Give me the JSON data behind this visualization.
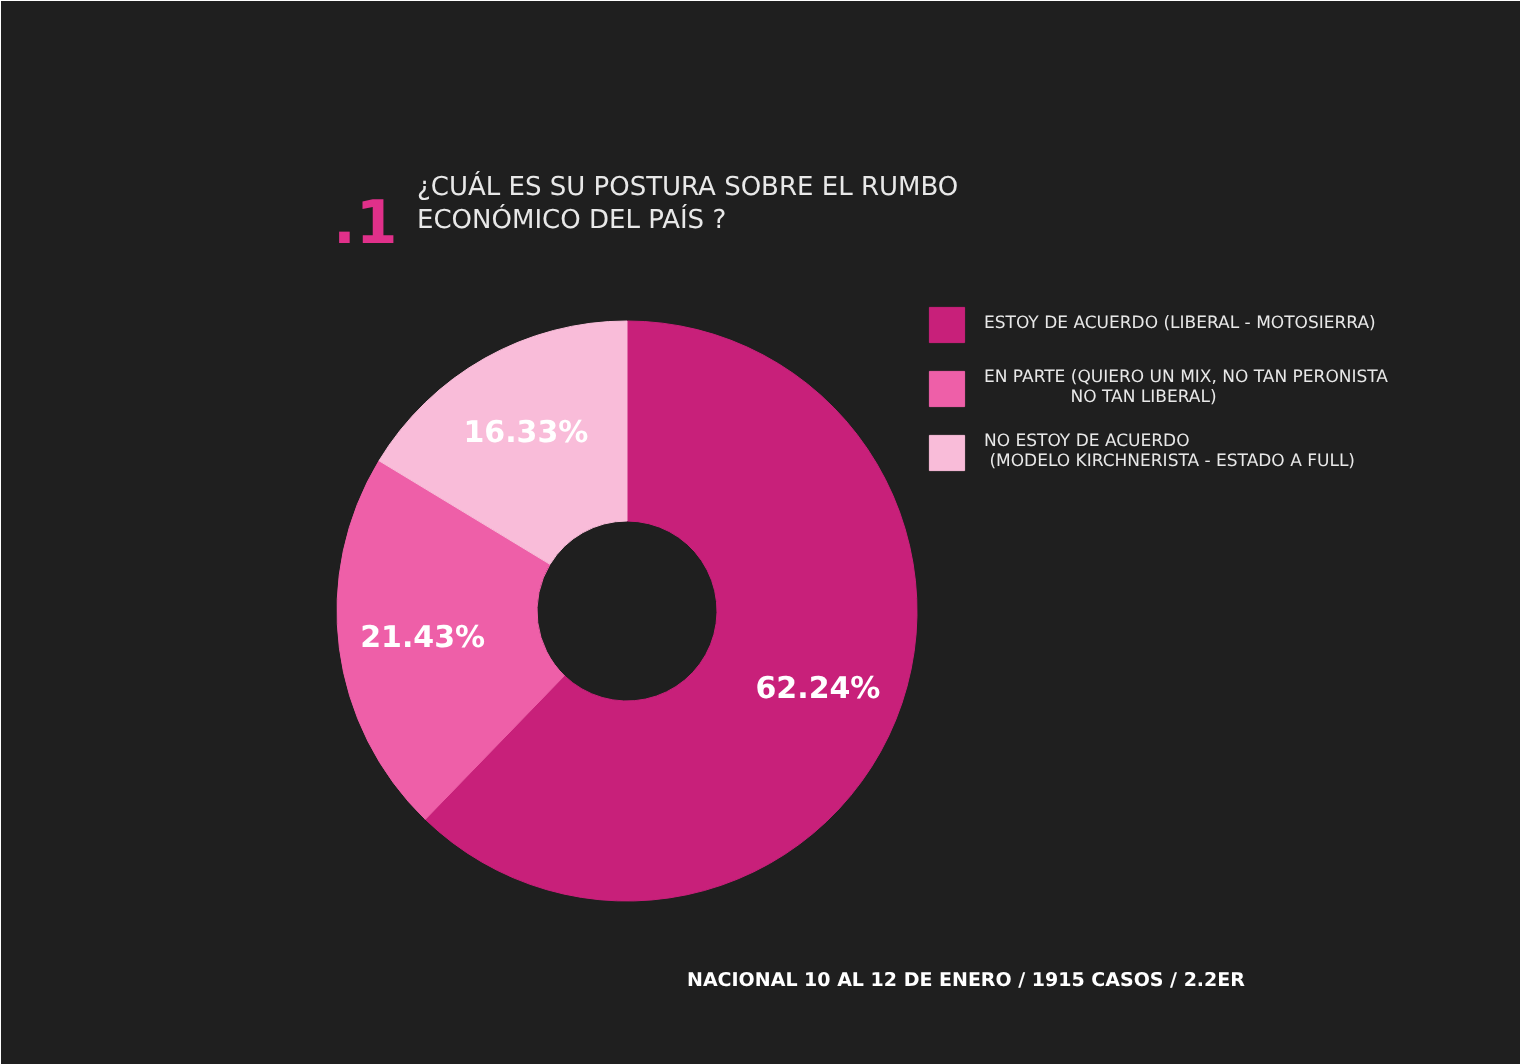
{
  "chart_data": {
    "type": "donut",
    "title": "¿CUÁL ES SU POSTURA SOBRE EL RUMBO\nECONÓMICO DEL PAÍS ?",
    "annotations": [
      ".1",
      "NACIONAL  10 AL 12 DE ENERO / 1915 CASOS / 2.2ER"
    ],
    "categories": [
      "ESTOY DE ACUERDO (LIBERAL - MOTOSIERRA)",
      "EN PARTE (QUIERO UN MIX, NO TAN PERONISTA\n                NO TAN LIBERAL)",
      "NO ESTOY DE ACUERDO\n (MODELO KIRCHNERISTA - ESTADO A FULL)"
    ],
    "values": [
      62.24,
      21.43,
      16.33
    ],
    "colors": [
      "#c8207a",
      "#ee5fa8",
      "#f9bcd9"
    ],
    "value_labels": [
      "62.24%",
      "21.43%",
      "16.33%"
    ],
    "legend": "right"
  }
}
